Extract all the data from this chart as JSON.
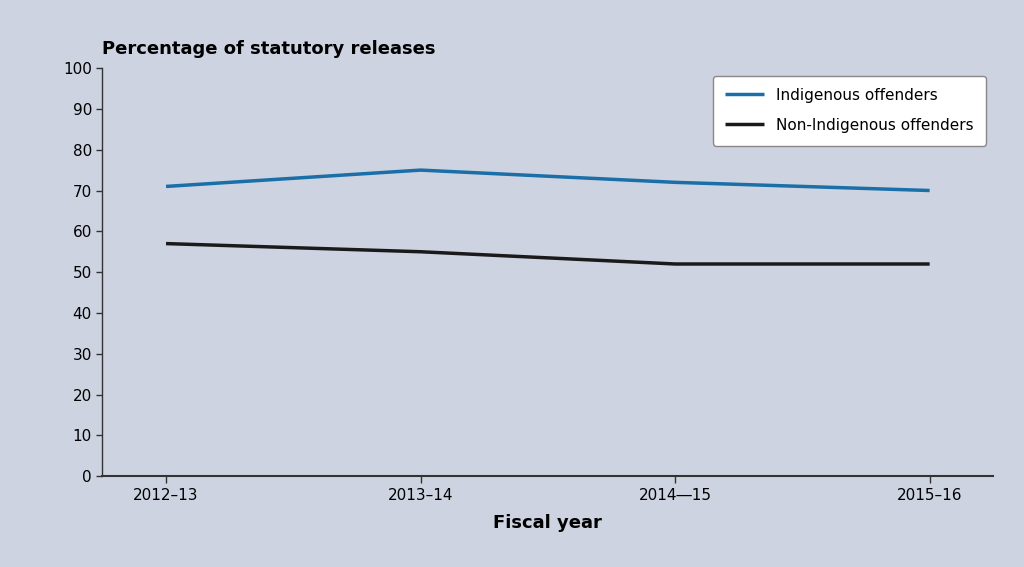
{
  "title": "Percentage of statutory releases",
  "xlabel": "Fiscal year",
  "x_labels": [
    "2012–13",
    "2013–14",
    "2014―15",
    "2015–16"
  ],
  "x_values": [
    0,
    1,
    2,
    3
  ],
  "indigenous_values": [
    71,
    75,
    72,
    70
  ],
  "non_indigenous_values": [
    57,
    55,
    52,
    52
  ],
  "indigenous_color": "#1a6fa8",
  "non_indigenous_color": "#1a1a1a",
  "line_width": 2.5,
  "ylim": [
    0,
    100
  ],
  "yticks": [
    0,
    10,
    20,
    30,
    40,
    50,
    60,
    70,
    80,
    90,
    100
  ],
  "background_color": "#cdd3e0",
  "legend_indigenous": "Indigenous offenders",
  "legend_non_indigenous": "Non-Indigenous offenders",
  "title_fontsize": 13,
  "axis_label_fontsize": 13,
  "tick_fontsize": 11,
  "legend_fontsize": 11
}
